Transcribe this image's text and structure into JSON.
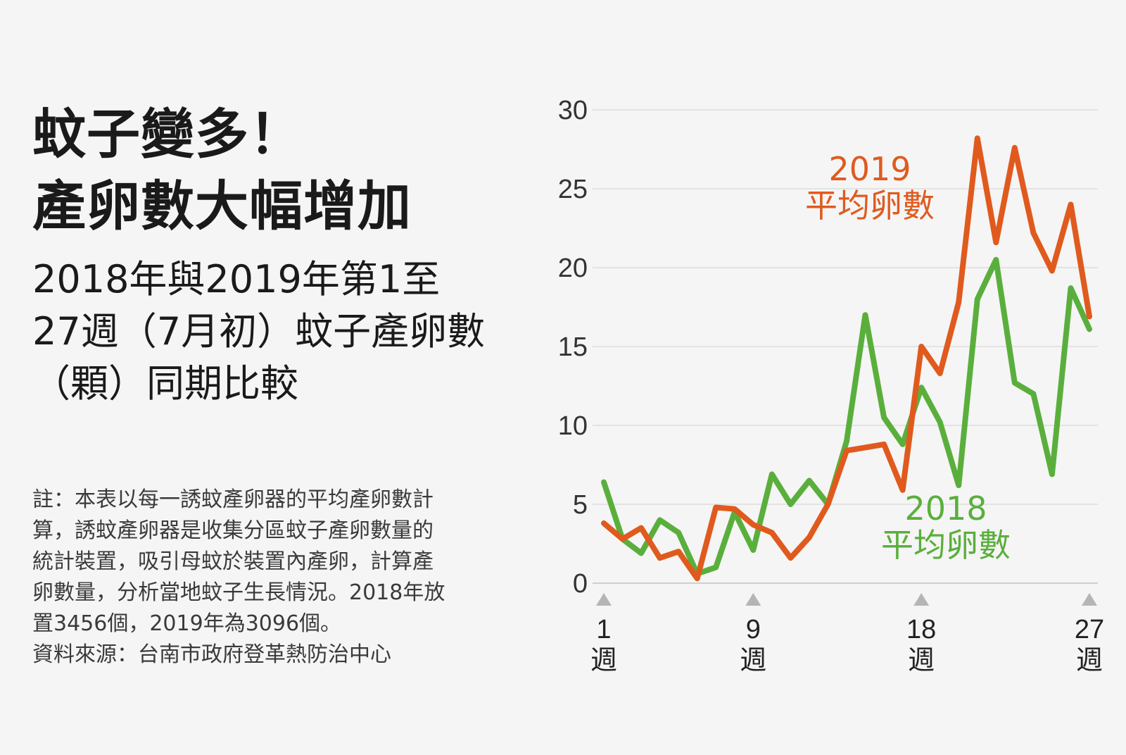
{
  "title": {
    "line1": "蚊子變多！",
    "line2": "產卵數大幅增加"
  },
  "subtitle": {
    "line1": "2018年與2019年第1至",
    "line2": "27週（7月初）蚊子產卵數",
    "line3": "（顆）同期比較"
  },
  "note": {
    "line1": "註：本表以每一誘蚊產卵器的平均產卵數計",
    "line2": "算，誘蚊產卵器是收集分區蚊子產卵數量的",
    "line3": "統計裝置，吸引母蚊於裝置內產卵，計算產",
    "line4": "卵數量，分析當地蚊子生長情況。2018年放",
    "line5": "置3456個，2019年為3096個。",
    "line6": "資料來源：台南市政府登革熱防治中心"
  },
  "chart_data": {
    "type": "line",
    "x": [
      1,
      2,
      3,
      4,
      5,
      6,
      7,
      8,
      9,
      10,
      11,
      12,
      13,
      14,
      15,
      16,
      17,
      18,
      19,
      20,
      21,
      22,
      23,
      24,
      25,
      26,
      27
    ],
    "x_tick_values": [
      1,
      9,
      18,
      27
    ],
    "x_tick_labels": [
      "1",
      "9",
      "18",
      "27"
    ],
    "x_tick_unit": "週",
    "ylim": [
      0,
      30
    ],
    "y_ticks": [
      0,
      5,
      10,
      15,
      20,
      25,
      30
    ],
    "grid": true,
    "series": [
      {
        "name": "2019\n平均卵數",
        "label_line1": "2019",
        "label_line2": "平均卵數",
        "color": "#e05a1e",
        "values": [
          3.8,
          2.8,
          3.5,
          1.6,
          2.0,
          0.3,
          4.8,
          4.7,
          3.7,
          3.2,
          1.6,
          2.9,
          5.0,
          8.4,
          8.6,
          8.8,
          5.9,
          15.0,
          13.3,
          17.8,
          28.2,
          21.6,
          27.6,
          22.2,
          19.8,
          24.0,
          16.9
        ]
      },
      {
        "name": "2018\n平均卵數",
        "label_line1": "2018",
        "label_line2": "平均卵數",
        "color": "#5aaf3c",
        "values": [
          6.4,
          2.8,
          1.9,
          4.0,
          3.2,
          0.6,
          1.0,
          4.5,
          2.1,
          6.9,
          5.0,
          6.5,
          5.0,
          9.0,
          17.0,
          10.5,
          8.8,
          12.4,
          10.2,
          6.2,
          18.0,
          20.5,
          12.7,
          12.0,
          6.9,
          18.7,
          16.1
        ]
      }
    ]
  }
}
